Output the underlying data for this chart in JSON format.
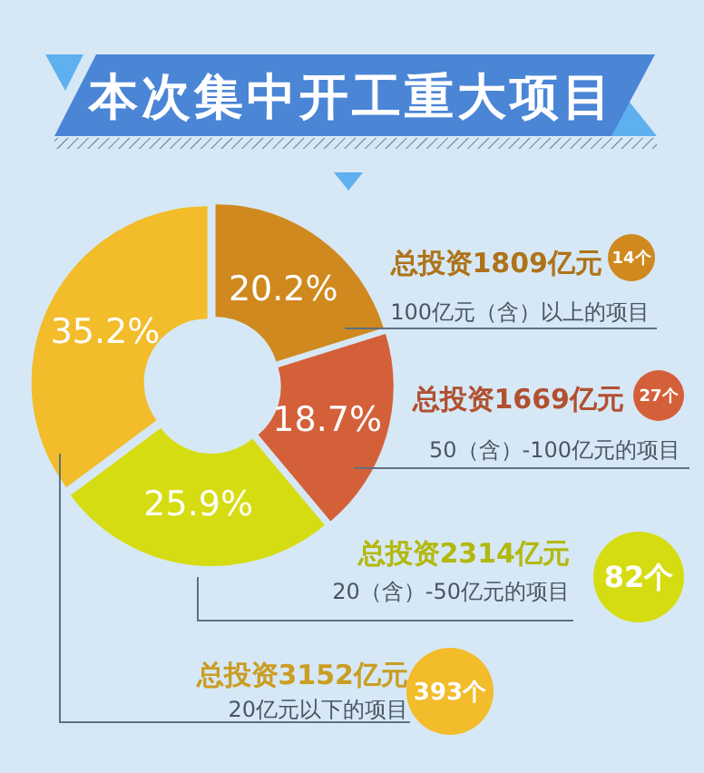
{
  "chart_data": {
    "type": "donut",
    "title": "本次集中开工重大项目",
    "categories": [
      "100亿元（含）以上的项目",
      "50（含）-100亿元的项目",
      "20（含）-50亿元的项目",
      "20亿元以下的项目"
    ],
    "values": [
      20.2,
      18.7,
      25.9,
      35.2
    ],
    "colors": [
      "#d0891e",
      "#d4603a",
      "#d6dc12",
      "#f2bc2a"
    ],
    "value_labels": [
      "20.2%",
      "18.7%",
      "25.9%",
      "35.2%"
    ],
    "legend": "right",
    "annotations": [
      "总投资1809亿元",
      "14个",
      "总投资1669亿元",
      "27个",
      "总投资2314亿元",
      "82个",
      "总投资3152亿元",
      "393个"
    ]
  }
}
